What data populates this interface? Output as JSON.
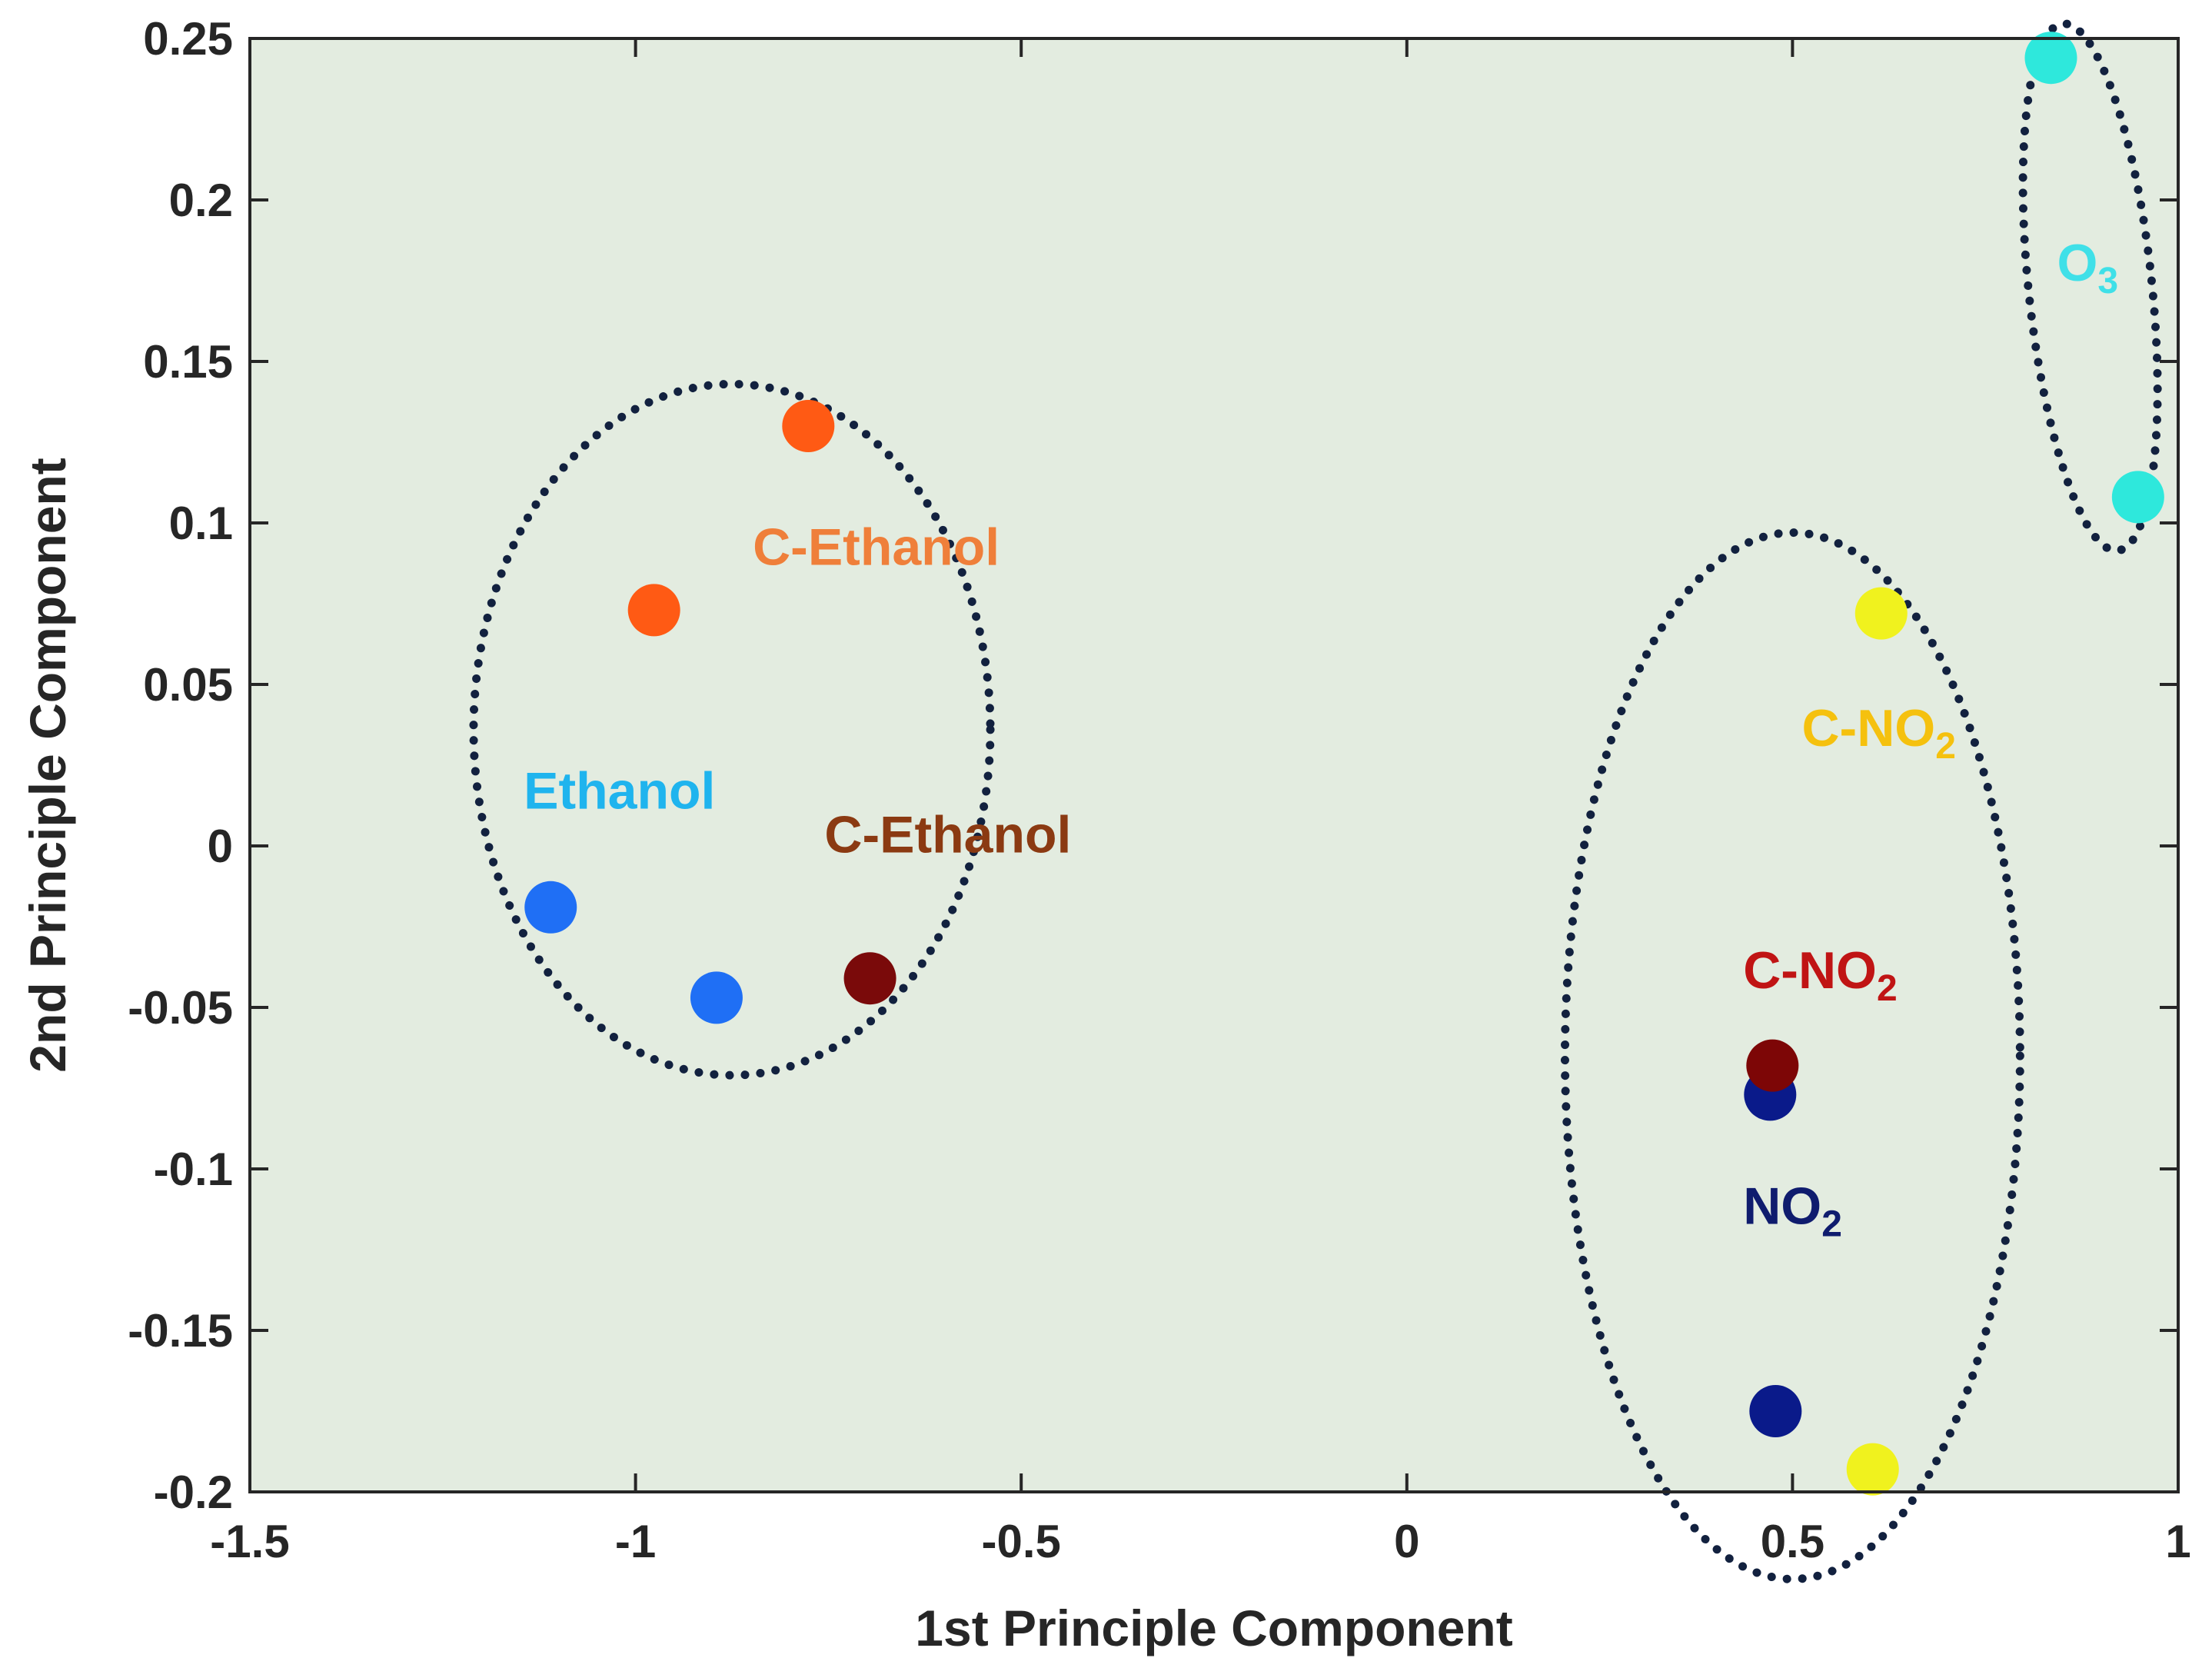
{
  "chart_data": {
    "type": "scatter",
    "title": "",
    "xlabel": "1st Principle Component",
    "ylabel": "2nd Principle Component",
    "xlim": [
      -1.5,
      1
    ],
    "ylim": [
      -0.2,
      0.25
    ],
    "xticks": [
      -1.5,
      -1,
      -0.5,
      0,
      0.5,
      1
    ],
    "yticks": [
      -0.2,
      -0.15,
      -0.1,
      -0.05,
      0,
      0.05,
      0.1,
      0.15,
      0.2,
      0.25
    ],
    "xtick_labels": [
      "-1.5",
      "-1",
      "-0.5",
      "0",
      "0.5",
      "1"
    ],
    "ytick_labels": [
      "-0.2",
      "-0.15",
      "-0.1",
      "-0.05",
      "0",
      "0.05",
      "0.1",
      "0.15",
      "0.2",
      "0.25"
    ],
    "grid": false,
    "background_color": "#e3ece0",
    "series": [
      {
        "name": "Ethanol",
        "color": "#1f6ff5",
        "points": [
          {
            "x": -1.11,
            "y": -0.019
          },
          {
            "x": -0.895,
            "y": -0.047
          }
        ]
      },
      {
        "name": "C-Ethanol (orange)",
        "color": "#ff5a14",
        "points": [
          {
            "x": -0.776,
            "y": 0.13
          },
          {
            "x": -0.976,
            "y": 0.073
          }
        ]
      },
      {
        "name": "C-Ethanol (dark red)",
        "color": "#7a0a0a",
        "points": [
          {
            "x": -0.696,
            "y": -0.041
          }
        ]
      },
      {
        "name": "NO2",
        "color": "#0a1a8a",
        "points": [
          {
            "x": 0.471,
            "y": -0.077
          },
          {
            "x": 0.478,
            "y": -0.175
          }
        ]
      },
      {
        "name": "C-NO2 (dark red)",
        "color": "#7d0606",
        "points": [
          {
            "x": 0.474,
            "y": -0.068
          }
        ]
      },
      {
        "name": "C-NO2 (yellow)",
        "color": "#f0f21e",
        "points": [
          {
            "x": 0.615,
            "y": 0.072
          },
          {
            "x": 0.604,
            "y": -0.193
          }
        ]
      },
      {
        "name": "O3",
        "color": "#2ee8dc",
        "points": [
          {
            "x": 0.835,
            "y": 0.244
          },
          {
            "x": 0.948,
            "y": 0.108
          }
        ]
      }
    ],
    "cluster_outlines": [
      {
        "name": "ethanol-cluster",
        "cx": -0.875,
        "cy": 0.036,
        "rx": 0.335,
        "ry": 0.107,
        "color": "#12213f"
      },
      {
        "name": "no2-cluster",
        "cx": 0.5,
        "cy": -0.065,
        "rx": 0.295,
        "ry": 0.162,
        "color": "#12213f"
      },
      {
        "name": "o3-cluster",
        "cx": 0.886,
        "cy": 0.173,
        "rx": 0.08,
        "ry": 0.082,
        "rotate_deg": -6,
        "color": "#12213f"
      }
    ],
    "annotations": [
      {
        "text": "C-Ethanol",
        "sub": "",
        "x": -0.848,
        "y": 0.087,
        "color": "#ef7f3a"
      },
      {
        "text": "Ethanol",
        "sub": "",
        "x": -1.145,
        "y": 0.0115,
        "color": "#1fb4ee"
      },
      {
        "text": "C-Ethanol",
        "sub": "",
        "x": -0.755,
        "y": -0.002,
        "color": "#8b3a12"
      },
      {
        "text": "C-NO",
        "sub": "2",
        "x": 0.512,
        "y": 0.031,
        "color": "#f5c10e"
      },
      {
        "text": "C-NO",
        "sub": "2",
        "x": 0.436,
        "y": -0.044,
        "color": "#c01414"
      },
      {
        "text": "NO",
        "sub": "2",
        "x": 0.436,
        "y": -0.117,
        "color": "#0f1c6e"
      },
      {
        "text": "O",
        "sub": "3",
        "x": 0.843,
        "y": 0.175,
        "color": "#3fe0e8"
      }
    ]
  }
}
